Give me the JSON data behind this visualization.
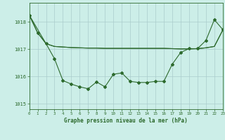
{
  "line1_x": [
    0,
    1,
    2,
    3,
    4,
    5,
    6,
    7,
    8,
    9,
    10,
    11,
    12,
    13,
    14,
    15,
    16,
    17,
    18,
    19,
    20,
    21,
    22,
    23
  ],
  "line1_y": [
    1018.25,
    1017.6,
    1017.2,
    1017.1,
    1017.08,
    1017.06,
    1017.05,
    1017.04,
    1017.04,
    1017.03,
    1017.03,
    1017.03,
    1017.03,
    1017.03,
    1017.03,
    1017.03,
    1017.03,
    1017.02,
    1017.01,
    1017.01,
    1017.02,
    1017.05,
    1017.1,
    1017.7
  ],
  "line2_x": [
    0,
    2,
    3,
    4,
    5,
    6,
    7,
    8,
    9,
    10,
    11,
    12,
    13,
    14,
    15,
    16,
    17,
    18,
    19,
    20,
    21,
    22,
    23
  ],
  "line2_y": [
    1018.25,
    1017.2,
    1017.1,
    1017.08,
    1017.06,
    1017.05,
    1017.04,
    1017.04,
    1017.03,
    1017.03,
    1017.03,
    1017.03,
    1017.03,
    1017.03,
    1017.03,
    1017.03,
    1017.02,
    1017.01,
    1017.01,
    1017.02,
    1017.05,
    1017.1,
    1017.7
  ],
  "line3_x": [
    0,
    1,
    2,
    3,
    4,
    5,
    6,
    7,
    8,
    9,
    10,
    11,
    12,
    13,
    14,
    15,
    16,
    17,
    18,
    19,
    20,
    21,
    22,
    23
  ],
  "line3_y": [
    1018.25,
    1017.6,
    1017.2,
    1016.65,
    1015.85,
    1015.72,
    1015.62,
    1015.55,
    1015.8,
    1015.62,
    1016.08,
    1016.13,
    1015.82,
    1015.78,
    1015.78,
    1015.82,
    1015.82,
    1016.45,
    1016.88,
    1017.02,
    1017.02,
    1017.32,
    1018.08,
    1017.72
  ],
  "line_color": "#2d6a2d",
  "bg_color": "#cceee8",
  "grid_color": "#aacccc",
  "xlabel": "Graphe pression niveau de la mer (hPa)",
  "ylim": [
    1014.8,
    1018.7
  ],
  "xlim": [
    0,
    23
  ],
  "yticks": [
    1015,
    1016,
    1017,
    1018
  ],
  "xticks": [
    0,
    1,
    2,
    3,
    4,
    5,
    6,
    7,
    8,
    9,
    10,
    11,
    12,
    13,
    14,
    15,
    16,
    17,
    18,
    19,
    20,
    21,
    22,
    23
  ]
}
